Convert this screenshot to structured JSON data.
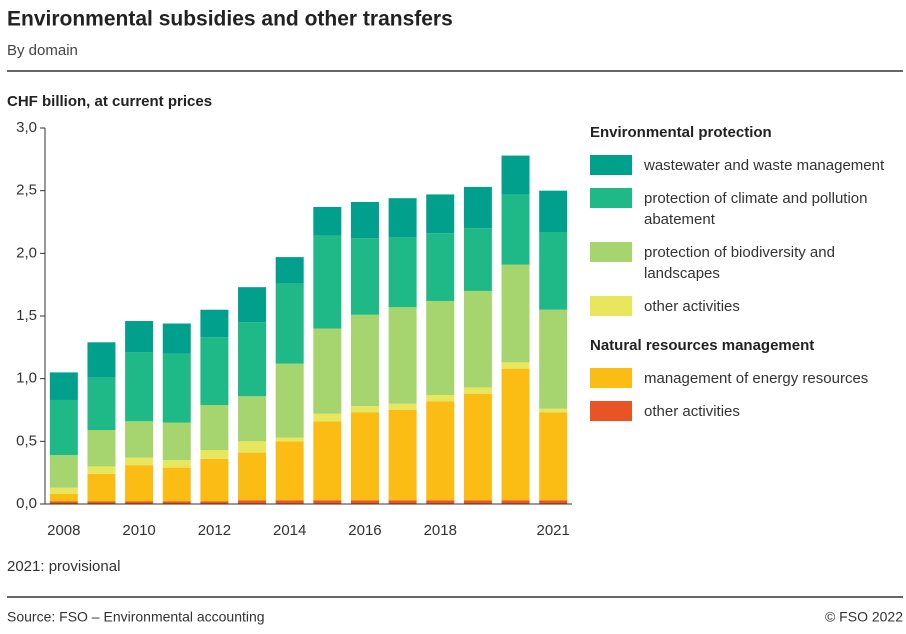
{
  "chart_data": {
    "type": "stacked_bar",
    "title": "Environmental subsidies and other transfers",
    "subtitle": "By domain",
    "y_label": "CHF billion, at current prices",
    "note": "2021: provisional",
    "source": "Source: FSO – Environmental accounting",
    "copyright": "© FSO 2022",
    "categories": [
      "2008",
      null,
      "2010",
      null,
      "2012",
      null,
      "2014",
      null,
      "2016",
      null,
      "2018",
      null,
      null,
      "2021"
    ],
    "ylim": [
      0,
      3
    ],
    "yticks": [
      {
        "value": 0,
        "label": "0,0"
      },
      {
        "value": 0.5,
        "label": "0,5"
      },
      {
        "value": 1,
        "label": "1,0"
      },
      {
        "value": 1.5,
        "label": "1,5"
      },
      {
        "value": 2,
        "label": "2,0"
      },
      {
        "value": 2.5,
        "label": "2,5"
      },
      {
        "value": 3,
        "label": "3,0"
      }
    ],
    "grid": false,
    "series_groups": [
      {
        "name": "Environmental protection",
        "series": [
          {
            "name": "wastewater and waste management",
            "color": "#00a08c",
            "values": [
              0.22,
              0.28,
              0.25,
              0.24,
              0.22,
              0.28,
              0.21,
              0.23,
              0.29,
              0.31,
              0.31,
              0.33,
              0.31,
              0.33
            ]
          },
          {
            "name": "protection of climate and pollution abatement",
            "color": "#1fb887",
            "values": [
              0.44,
              0.42,
              0.55,
              0.55,
              0.54,
              0.59,
              0.64,
              0.74,
              0.61,
              0.56,
              0.54,
              0.5,
              0.56,
              0.62
            ]
          },
          {
            "name": "protection of biodiversity and landscapes",
            "color": "#a6d46e",
            "values": [
              0.26,
              0.29,
              0.29,
              0.3,
              0.36,
              0.36,
              0.59,
              0.68,
              0.73,
              0.77,
              0.75,
              0.77,
              0.78,
              0.79
            ]
          },
          {
            "name": "other activities",
            "color": "#e8e65c",
            "values": [
              0.05,
              0.06,
              0.06,
              0.06,
              0.07,
              0.09,
              0.03,
              0.06,
              0.05,
              0.05,
              0.05,
              0.05,
              0.05,
              0.03
            ]
          }
        ]
      },
      {
        "name": "Natural resources management",
        "series": [
          {
            "name": "management of energy resources",
            "color": "#fbbd14",
            "values": [
              0.06,
              0.22,
              0.29,
              0.27,
              0.34,
              0.38,
              0.47,
              0.63,
              0.7,
              0.72,
              0.79,
              0.85,
              1.05,
              0.7
            ]
          },
          {
            "name": "other activities",
            "color": "#ea5323",
            "values": [
              0.02,
              0.02,
              0.02,
              0.02,
              0.02,
              0.03,
              0.03,
              0.03,
              0.03,
              0.03,
              0.03,
              0.03,
              0.03,
              0.03
            ]
          }
        ]
      }
    ]
  }
}
